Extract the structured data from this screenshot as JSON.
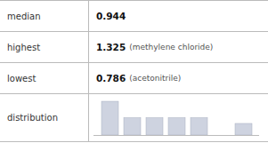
{
  "chart_data": {
    "type": "bar",
    "categories": [
      null,
      null,
      null,
      null,
      null,
      null,
      null
    ],
    "values": [
      3.5,
      1.8,
      1.8,
      1.8,
      1.8,
      0.0,
      1.2
    ],
    "color": "#ced3e0",
    "ylim": [
      0,
      3.78
    ],
    "yticks": [],
    "tick_labels": false,
    "annotations": [
      [
        "median",
        "0.944"
      ],
      [
        "highest",
        "1.325",
        "(methylene chloride)"
      ],
      [
        "lowest",
        "0.786",
        "(acetonitrile)"
      ],
      [
        "distribution"
      ]
    ]
  }
}
